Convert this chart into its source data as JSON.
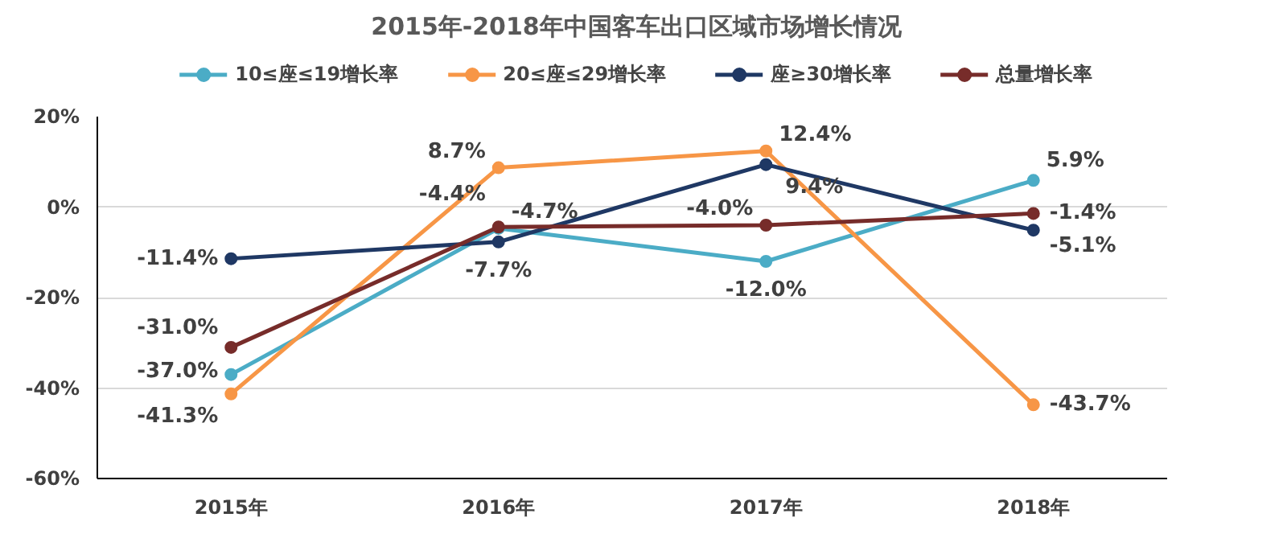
{
  "chart_data": {
    "type": "line",
    "title": "2015年-2018年中国客车出口区域市场增长情况",
    "categories": [
      "2015年",
      "2016年",
      "2017年",
      "2018年"
    ],
    "series": [
      {
        "name": "10≤座≤19增长率",
        "color": "#4bacc6",
        "values": [
          -37.0,
          -4.7,
          -12.0,
          5.9
        ],
        "value_labels": [
          "-37.0%",
          "-4.7%",
          "-12.0%",
          "5.9%"
        ]
      },
      {
        "name": "20≤座≤29增长率",
        "color": "#f79646",
        "values": [
          -41.3,
          8.7,
          12.4,
          -43.7
        ],
        "value_labels": [
          "-41.3%",
          "8.7%",
          "12.4%",
          "-43.7%"
        ]
      },
      {
        "name": "座≥30增长率",
        "color": "#1f3864",
        "values": [
          -11.4,
          -7.7,
          9.4,
          -5.1
        ],
        "value_labels": [
          "-11.4%",
          "-7.7%",
          "9.4%",
          "-5.1%"
        ]
      },
      {
        "name": "总量增长率",
        "color": "#772c2a",
        "values": [
          -31.0,
          -4.4,
          -4.0,
          -1.4
        ],
        "value_labels": [
          "-31.0%",
          "-4.4%",
          "-4.0%",
          "-1.4%"
        ]
      }
    ],
    "ylim": [
      -60,
      20
    ],
    "yticks": [
      {
        "value": -60,
        "label": "-60%"
      },
      {
        "value": -40,
        "label": "-40%"
      },
      {
        "value": -20,
        "label": "-20%"
      },
      {
        "value": 0,
        "label": "0%"
      },
      {
        "value": 20,
        "label": "20%"
      }
    ],
    "grid": "y",
    "legend": "top",
    "marker": "circle",
    "line_style": "solid"
  }
}
